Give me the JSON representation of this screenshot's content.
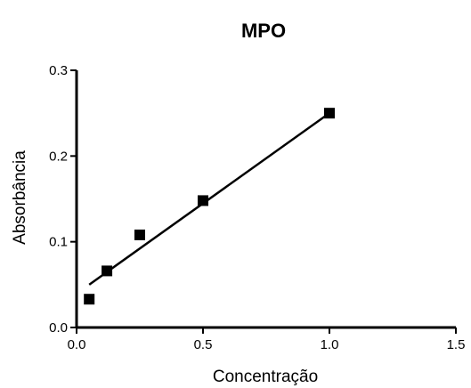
{
  "chart_data": {
    "type": "scatter",
    "title": "MPO",
    "xlabel": "Concentração",
    "ylabel": "Absorbância",
    "xlim": [
      0.0,
      1.5
    ],
    "ylim": [
      0.0,
      0.3
    ],
    "xticks": [
      "0.0",
      "0.5",
      "1.0",
      "1.5"
    ],
    "yticks": [
      "0.0",
      "0.1",
      "0.2",
      "0.3"
    ],
    "grid": false,
    "series": [
      {
        "marker": "square",
        "color": "#000000",
        "x": [
          0.05,
          0.12,
          0.25,
          0.5,
          1.0
        ],
        "y": [
          0.033,
          0.066,
          0.108,
          0.148,
          0.25
        ]
      }
    ],
    "fit_line": {
      "x": [
        0.05,
        1.0
      ],
      "y": [
        0.05,
        0.25
      ],
      "color": "#000000"
    }
  }
}
